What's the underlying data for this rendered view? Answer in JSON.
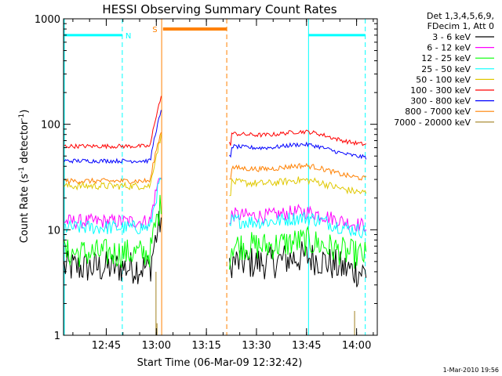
{
  "chart_data": {
    "type": "line",
    "title": "HESSI Observing Summary Count Rates",
    "xlabel": "Start Time (06-Mar-09 12:32:42)",
    "ylabel": {
      "prefix": "Count Rate (s",
      "sup1": "-1",
      "mid": " detector",
      "sup2": "-1",
      "suffix": ")"
    },
    "y_scale": "log",
    "ylim": [
      1,
      1000
    ],
    "y_ticks": [
      {
        "value": 1,
        "label": "1"
      },
      {
        "value": 10,
        "label": "10"
      },
      {
        "value": 100,
        "label": "100"
      },
      {
        "value": 1000,
        "label": "1000"
      }
    ],
    "xlim_minutes_after_12_32_42": [
      0,
      94
    ],
    "x_ticks": [
      {
        "value": 12.8,
        "label": "12:45"
      },
      {
        "value": 27.8,
        "label": "13:00"
      },
      {
        "value": 42.8,
        "label": "13:15"
      },
      {
        "value": 57.8,
        "label": "13:30"
      },
      {
        "value": 72.8,
        "label": "13:45"
      },
      {
        "value": 87.8,
        "label": "14:00"
      }
    ],
    "legend_header": [
      "Det 1,3,4,5,6,9,",
      "FDecim 1, Att 0"
    ],
    "legend_placement": "right",
    "series": [
      {
        "name": "3 - 6 keV",
        "color": "#000000",
        "pre": 4.4,
        "post": 5.0,
        "post_hump": 0.25,
        "noise": 0.16
      },
      {
        "name": "6 - 12 keV",
        "color": "#ff00ff",
        "pre": 12.0,
        "post": 14.0,
        "post_hump": 0.2,
        "noise": 0.07
      },
      {
        "name": "12 - 25 keV",
        "color": "#00ff00",
        "pre": 6.0,
        "post": 7.2,
        "post_hump": 0.22,
        "noise": 0.14
      },
      {
        "name": "25 - 50 keV",
        "color": "#00ffff",
        "pre": 10.5,
        "post": 12.3,
        "post_hump": 0.2,
        "noise": 0.07
      },
      {
        "name": "50 - 100 keV",
        "color": "#e0c800",
        "pre": 26.0,
        "post": 28.5,
        "post_hump": 0.18,
        "noise": 0.035
      },
      {
        "name": "100 - 300 keV",
        "color": "#ff0000",
        "pre": 62.0,
        "post": 82.0,
        "post_hump": 0.18,
        "noise": 0.02
      },
      {
        "name": "300 - 800 keV",
        "color": "#0000ff",
        "pre": 45.0,
        "post": 62.0,
        "post_hump": 0.18,
        "noise": 0.02
      },
      {
        "name": "800 - 7000 keV",
        "color": "#ff8000",
        "pre": 29.0,
        "post": 39.0,
        "post_hump": 0.18,
        "noise": 0.025
      },
      {
        "name": "7000 - 20000 keV",
        "color": "#a08020",
        "pre": 0,
        "post": 0,
        "post_hump": 0,
        "noise": 0
      }
    ],
    "annotations": [
      {
        "label": "N",
        "color": "#00ffff"
      },
      {
        "label": "S",
        "color": "#ff8000"
      }
    ],
    "footer": "1-Mar-2010 19:56"
  }
}
